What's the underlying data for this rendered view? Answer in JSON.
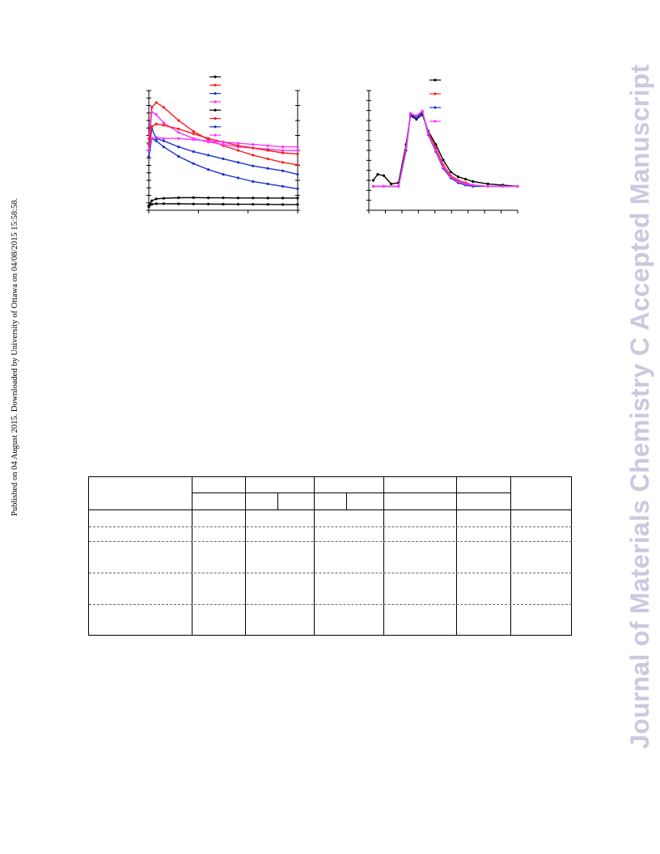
{
  "page": {
    "sidebar_text": "Published on 04 August 2015. Downloaded by University of Ottawa on 04/08/2015 15:58:58.",
    "watermark_text": "Journal of Materials Chemistry C Accepted Manuscript"
  },
  "colors": {
    "black": "#000000",
    "red": "#ff1a1a",
    "blue": "#1a33cc",
    "magenta": "#ff33ff",
    "watermark": "#c9c9e0"
  },
  "chart_data": [
    {
      "type": "line",
      "title": "",
      "xlabel": "",
      "ylabel": "",
      "xlim": [
        0,
        1
      ],
      "ylim": [
        0,
        1
      ],
      "grid": false,
      "legend": "top",
      "series": [
        {
          "color": "#000000",
          "x": [
            0,
            0.02,
            0.05,
            0.1,
            0.2,
            0.3,
            0.4,
            0.5,
            0.6,
            0.7,
            0.8,
            0.9,
            1
          ],
          "values": [
            0.04,
            0.08,
            0.095,
            0.1,
            0.105,
            0.106,
            0.104,
            0.104,
            0.103,
            0.103,
            0.102,
            0.102,
            0.102
          ]
        },
        {
          "color": "#ff1a1a",
          "x": [
            0,
            0.02,
            0.05,
            0.1,
            0.2,
            0.3,
            0.4,
            0.5,
            0.6,
            0.7,
            0.8,
            0.9,
            1
          ],
          "values": [
            0.6,
            0.86,
            0.9,
            0.86,
            0.75,
            0.66,
            0.59,
            0.54,
            0.5,
            0.46,
            0.43,
            0.4,
            0.38
          ]
        },
        {
          "color": "#1a33cc",
          "x": [
            0,
            0.02,
            0.05,
            0.1,
            0.2,
            0.3,
            0.4,
            0.5,
            0.6,
            0.7,
            0.8,
            0.9,
            1
          ],
          "values": [
            0.5,
            0.68,
            0.6,
            0.58,
            0.53,
            0.49,
            0.46,
            0.43,
            0.4,
            0.37,
            0.35,
            0.33,
            0.3
          ]
        },
        {
          "color": "#ff33ff",
          "x": [
            0,
            0.02,
            0.05,
            0.1,
            0.2,
            0.3,
            0.4,
            0.5,
            0.6,
            0.7,
            0.8,
            0.9,
            1
          ],
          "values": [
            0.55,
            0.82,
            0.8,
            0.73,
            0.65,
            0.6,
            0.57,
            0.55,
            0.53,
            0.52,
            0.51,
            0.5,
            0.5
          ]
        },
        {
          "color": "#000000",
          "x": [
            0,
            0.02,
            0.05,
            0.1,
            0.2,
            0.3,
            0.4,
            0.5,
            0.6,
            0.7,
            0.8,
            0.9,
            1
          ],
          "values": [
            0.03,
            0.05,
            0.055,
            0.055,
            0.054,
            0.053,
            0.052,
            0.051,
            0.05,
            0.05,
            0.049,
            0.048,
            0.048
          ]
        },
        {
          "color": "#ff1a1a",
          "x": [
            0,
            0.02,
            0.05,
            0.1,
            0.2,
            0.3,
            0.4,
            0.5,
            0.6,
            0.7,
            0.8,
            0.9,
            1
          ],
          "values": [
            0.55,
            0.7,
            0.72,
            0.71,
            0.68,
            0.64,
            0.6,
            0.57,
            0.54,
            0.52,
            0.5,
            0.48,
            0.47
          ]
        },
        {
          "color": "#1a33cc",
          "x": [
            0,
            0.02,
            0.05,
            0.1,
            0.2,
            0.3,
            0.4,
            0.5,
            0.6,
            0.7,
            0.8,
            0.9,
            1
          ],
          "values": [
            0.45,
            0.6,
            0.58,
            0.53,
            0.45,
            0.39,
            0.34,
            0.3,
            0.27,
            0.24,
            0.22,
            0.2,
            0.18
          ]
        },
        {
          "color": "#ff33ff",
          "x": [
            0,
            0.02,
            0.05,
            0.1,
            0.2,
            0.3,
            0.4,
            0.5,
            0.6,
            0.7,
            0.8,
            0.9,
            1
          ],
          "values": [
            0.5,
            0.6,
            0.61,
            0.6,
            0.6,
            0.59,
            0.58,
            0.57,
            0.56,
            0.55,
            0.54,
            0.53,
            0.53
          ]
        }
      ]
    },
    {
      "type": "line",
      "title": "",
      "xlabel": "",
      "ylabel": "",
      "xlim": [
        0,
        1
      ],
      "ylim": [
        0,
        1
      ],
      "grid": false,
      "legend": "top",
      "series": [
        {
          "color": "#000000",
          "x": [
            0.03,
            0.06,
            0.1,
            0.15,
            0.2,
            0.25,
            0.28,
            0.32,
            0.36,
            0.4,
            0.45,
            0.5,
            0.55,
            0.6,
            0.65,
            0.7,
            0.8,
            0.9,
            1.0
          ],
          "values": [
            0.25,
            0.3,
            0.29,
            0.22,
            0.23,
            0.55,
            0.79,
            0.76,
            0.8,
            0.66,
            0.55,
            0.42,
            0.32,
            0.28,
            0.26,
            0.24,
            0.22,
            0.21,
            0.2
          ]
        },
        {
          "color": "#ff1a1a",
          "x": [
            0.03,
            0.1,
            0.2,
            0.25,
            0.28,
            0.32,
            0.36,
            0.4,
            0.45,
            0.5,
            0.55,
            0.6,
            0.65,
            0.7,
            0.8,
            0.9,
            1.0
          ],
          "values": [
            0.2,
            0.2,
            0.2,
            0.5,
            0.8,
            0.78,
            0.82,
            0.65,
            0.52,
            0.38,
            0.29,
            0.25,
            0.23,
            0.21,
            0.2,
            0.2,
            0.2
          ]
        },
        {
          "color": "#1a33cc",
          "x": [
            0.03,
            0.1,
            0.2,
            0.25,
            0.28,
            0.32,
            0.36,
            0.4,
            0.45,
            0.5,
            0.55,
            0.6,
            0.65,
            0.7,
            0.8,
            0.9,
            1.0
          ],
          "values": [
            0.2,
            0.2,
            0.2,
            0.5,
            0.8,
            0.77,
            0.82,
            0.63,
            0.49,
            0.35,
            0.27,
            0.23,
            0.21,
            0.2,
            0.2,
            0.2,
            0.2
          ]
        },
        {
          "color": "#ff33ff",
          "x": [
            0.03,
            0.1,
            0.2,
            0.25,
            0.28,
            0.32,
            0.36,
            0.4,
            0.45,
            0.5,
            0.55,
            0.6,
            0.65,
            0.7,
            0.8,
            0.9,
            1.0
          ],
          "values": [
            0.2,
            0.2,
            0.2,
            0.52,
            0.81,
            0.79,
            0.83,
            0.64,
            0.5,
            0.36,
            0.28,
            0.24,
            0.22,
            0.21,
            0.2,
            0.2,
            0.2
          ]
        }
      ]
    }
  ],
  "table": {
    "headers": [
      "",
      "",
      "",
      "",
      "",
      "",
      ""
    ],
    "rows": [
      [
        "",
        "",
        "",
        "",
        "",
        "",
        ""
      ],
      [
        "",
        "",
        "",
        "",
        "",
        "",
        ""
      ],
      [
        "",
        "",
        "",
        "",
        "",
        "",
        ""
      ],
      [
        "",
        "",
        "",
        "",
        "",
        "",
        ""
      ]
    ]
  }
}
